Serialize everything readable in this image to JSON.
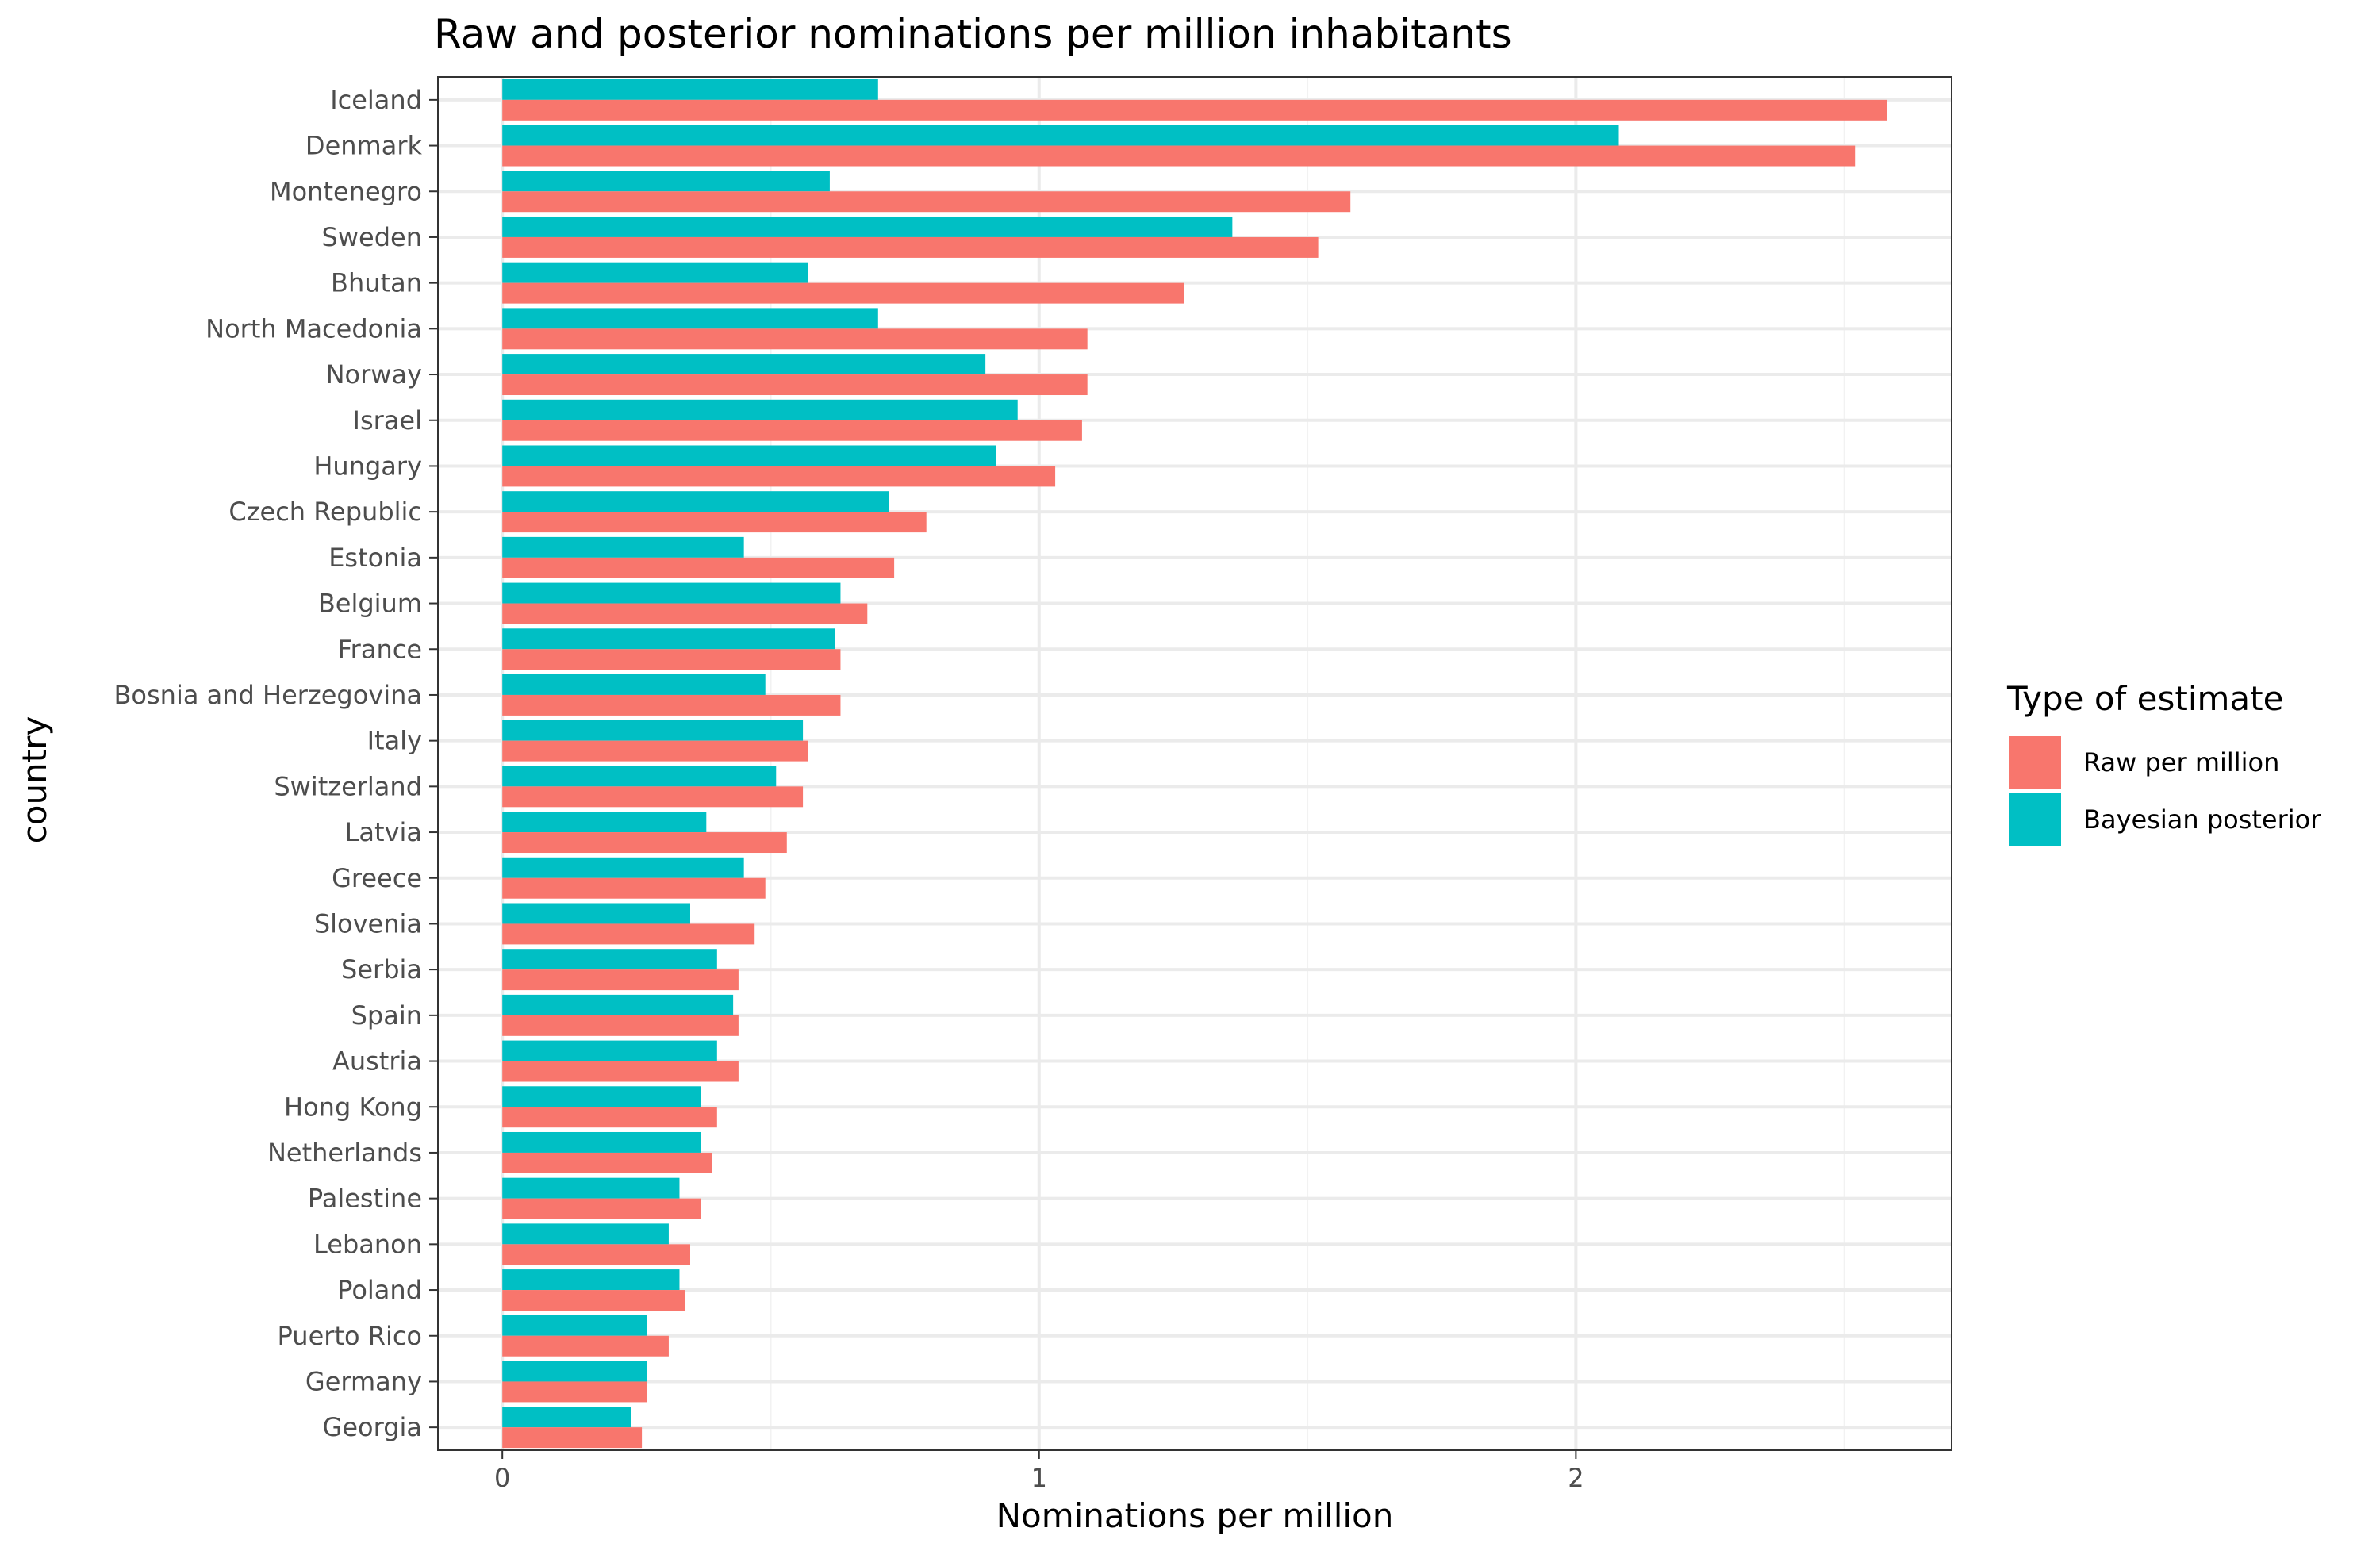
{
  "chart_data": {
    "type": "bar",
    "orientation": "horizontal",
    "title": "Raw and posterior nominations per million inhabitants",
    "xlabel": "Nominations per million",
    "ylabel": "country",
    "xlim": [
      -0.12,
      2.7
    ],
    "xticks": [
      0,
      1,
      2
    ],
    "grid": true,
    "legend_title": "Type of estimate",
    "legend_position": "right",
    "categories": [
      "Iceland",
      "Denmark",
      "Montenegro",
      "Sweden",
      "Bhutan",
      "North Macedonia",
      "Norway",
      "Israel",
      "Hungary",
      "Czech Republic",
      "Estonia",
      "Belgium",
      "France",
      "Bosnia and Herzegovina",
      "Italy",
      "Switzerland",
      "Latvia",
      "Greece",
      "Slovenia",
      "Serbia",
      "Spain",
      "Austria",
      "Hong Kong",
      "Netherlands",
      "Palestine",
      "Lebanon",
      "Poland",
      "Puerto Rico",
      "Germany",
      "Georgia"
    ],
    "series": [
      {
        "name": "Raw per million",
        "color": "#F8766D",
        "values": [
          2.58,
          2.52,
          1.58,
          1.52,
          1.27,
          1.09,
          1.09,
          1.08,
          1.03,
          0.79,
          0.73,
          0.68,
          0.63,
          0.63,
          0.57,
          0.56,
          0.53,
          0.49,
          0.47,
          0.44,
          0.44,
          0.44,
          0.4,
          0.39,
          0.37,
          0.35,
          0.34,
          0.31,
          0.27,
          0.26
        ]
      },
      {
        "name": "Bayesian posterior",
        "color": "#00BFC4",
        "values": [
          0.7,
          2.08,
          0.61,
          1.36,
          0.57,
          0.7,
          0.9,
          0.96,
          0.92,
          0.72,
          0.45,
          0.63,
          0.62,
          0.49,
          0.56,
          0.51,
          0.38,
          0.45,
          0.35,
          0.4,
          0.43,
          0.4,
          0.37,
          0.37,
          0.33,
          0.31,
          0.33,
          0.27,
          0.27,
          0.24
        ]
      }
    ]
  }
}
